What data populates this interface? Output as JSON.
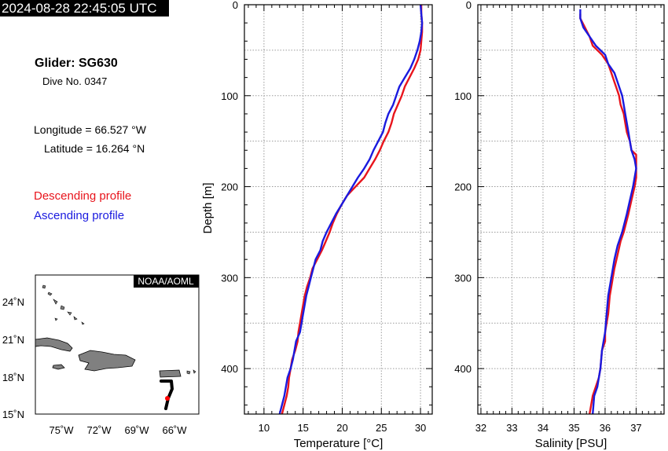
{
  "header": {
    "timestamp": "2024-08-28 22:45:05 UTC",
    "glider": "Glider: SG630",
    "dive": "Dive No. 0347",
    "longitude": "Longitude = 66.527 °W",
    "latitude": "Latitude = 16.264 °N"
  },
  "legend": {
    "descending": "Descending profile",
    "ascending": "Ascending profile",
    "descending_color": "#e8141c",
    "ascending_color": "#1a1adf"
  },
  "map": {
    "credit": "NOAA/AOML",
    "lat_labels": [
      "24˚N",
      "21˚N",
      "18˚N",
      "15˚N"
    ],
    "lon_labels": [
      "75˚W",
      "72˚W",
      "69˚W",
      "66˚W"
    ],
    "glider_position": {
      "lon": -66.527,
      "lat": 16.264
    },
    "track_color": "#000000",
    "position_color": "#ff0000",
    "land_color": "#808080"
  },
  "chart_data": [
    {
      "type": "line",
      "xlabel": "Temperature [°C]",
      "ylabel": "Depth [m]",
      "xlim": [
        7.5,
        31.5
      ],
      "ylim": [
        450,
        0
      ],
      "xticks": [
        10,
        15,
        20,
        25,
        30
      ],
      "yticks": [
        0,
        100,
        200,
        300,
        400
      ],
      "grid": true,
      "series": [
        {
          "name": "Descending profile",
          "color": "#e8141c",
          "points": [
            [
              30.1,
              0
            ],
            [
              30.1,
              10
            ],
            [
              30.2,
              20
            ],
            [
              30.2,
              30
            ],
            [
              30.1,
              40
            ],
            [
              30.0,
              50
            ],
            [
              29.7,
              60
            ],
            [
              29.2,
              70
            ],
            [
              28.6,
              80
            ],
            [
              28.0,
              90
            ],
            [
              27.6,
              100
            ],
            [
              27.1,
              110
            ],
            [
              26.6,
              120
            ],
            [
              26.3,
              130
            ],
            [
              25.9,
              140
            ],
            [
              25.3,
              150
            ],
            [
              24.8,
              160
            ],
            [
              24.2,
              170
            ],
            [
              23.5,
              180
            ],
            [
              22.8,
              190
            ],
            [
              21.7,
              200
            ],
            [
              20.6,
              210
            ],
            [
              19.9,
              220
            ],
            [
              19.3,
              230
            ],
            [
              18.8,
              240
            ],
            [
              18.4,
              250
            ],
            [
              17.9,
              260
            ],
            [
              17.4,
              270
            ],
            [
              16.8,
              280
            ],
            [
              16.2,
              290
            ],
            [
              15.9,
              300
            ],
            [
              15.5,
              310
            ],
            [
              15.2,
              320
            ],
            [
              15.0,
              330
            ],
            [
              14.8,
              340
            ],
            [
              14.6,
              350
            ],
            [
              14.4,
              360
            ],
            [
              14.3,
              370
            ],
            [
              14.0,
              380
            ],
            [
              13.6,
              390
            ],
            [
              13.4,
              400
            ],
            [
              13.2,
              410
            ],
            [
              13.1,
              420
            ],
            [
              12.9,
              430
            ],
            [
              12.6,
              440
            ],
            [
              12.3,
              450
            ]
          ]
        },
        {
          "name": "Ascending profile",
          "color": "#1a1adf",
          "points": [
            [
              30.0,
              0
            ],
            [
              30.1,
              10
            ],
            [
              30.2,
              20
            ],
            [
              30.1,
              30
            ],
            [
              29.9,
              40
            ],
            [
              29.6,
              50
            ],
            [
              29.2,
              60
            ],
            [
              28.7,
              70
            ],
            [
              28.0,
              80
            ],
            [
              27.3,
              90
            ],
            [
              26.9,
              100
            ],
            [
              26.5,
              110
            ],
            [
              25.9,
              120
            ],
            [
              25.5,
              130
            ],
            [
              25.2,
              140
            ],
            [
              24.6,
              150
            ],
            [
              24.0,
              160
            ],
            [
              23.5,
              170
            ],
            [
              22.8,
              180
            ],
            [
              22.0,
              190
            ],
            [
              21.3,
              200
            ],
            [
              20.6,
              210
            ],
            [
              19.9,
              220
            ],
            [
              19.2,
              230
            ],
            [
              18.6,
              240
            ],
            [
              18.0,
              250
            ],
            [
              17.5,
              260
            ],
            [
              17.2,
              270
            ],
            [
              16.6,
              280
            ],
            [
              16.3,
              290
            ],
            [
              16.0,
              300
            ],
            [
              15.7,
              310
            ],
            [
              15.4,
              320
            ],
            [
              15.2,
              330
            ],
            [
              15.0,
              340
            ],
            [
              14.8,
              350
            ],
            [
              14.6,
              360
            ],
            [
              14.1,
              370
            ],
            [
              13.9,
              380
            ],
            [
              13.7,
              390
            ],
            [
              13.4,
              400
            ],
            [
              13.0,
              410
            ],
            [
              12.8,
              420
            ],
            [
              12.6,
              430
            ],
            [
              12.3,
              440
            ],
            [
              12.0,
              450
            ]
          ]
        }
      ]
    },
    {
      "type": "line",
      "xlabel": "Salinity [PSU]",
      "ylabel": "",
      "xlim": [
        31.9,
        37.9
      ],
      "ylim": [
        450,
        0
      ],
      "xticks": [
        32,
        33,
        34,
        35,
        36,
        37
      ],
      "yticks": [
        0,
        100,
        200,
        300,
        400
      ],
      "grid": true,
      "series": [
        {
          "name": "Descending profile",
          "color": "#e8141c",
          "points": [
            [
              35.2,
              10
            ],
            [
              35.2,
              15
            ],
            [
              35.35,
              25
            ],
            [
              35.5,
              35
            ],
            [
              35.6,
              45
            ],
            [
              35.9,
              55
            ],
            [
              36.1,
              65
            ],
            [
              36.2,
              75
            ],
            [
              36.3,
              85
            ],
            [
              36.4,
              95
            ],
            [
              36.45,
              100
            ],
            [
              36.5,
              110
            ],
            [
              36.6,
              120
            ],
            [
              36.65,
              130
            ],
            [
              36.7,
              140
            ],
            [
              36.8,
              150
            ],
            [
              36.85,
              160
            ],
            [
              37.0,
              165
            ],
            [
              37.0,
              175
            ],
            [
              37.0,
              190
            ],
            [
              36.95,
              200
            ],
            [
              36.85,
              215
            ],
            [
              36.75,
              230
            ],
            [
              36.6,
              250
            ],
            [
              36.5,
              260
            ],
            [
              36.4,
              275
            ],
            [
              36.3,
              290
            ],
            [
              36.25,
              300
            ],
            [
              36.2,
              310
            ],
            [
              36.15,
              320
            ],
            [
              36.1,
              340
            ],
            [
              36.05,
              350
            ],
            [
              36.0,
              360
            ],
            [
              36.0,
              370
            ],
            [
              35.9,
              380
            ],
            [
              35.85,
              400
            ],
            [
              35.8,
              410
            ],
            [
              35.7,
              420
            ],
            [
              35.6,
              430
            ],
            [
              35.5,
              450
            ]
          ]
        },
        {
          "name": "Ascending profile",
          "color": "#1a1adf",
          "points": [
            [
              35.2,
              5
            ],
            [
              35.2,
              15
            ],
            [
              35.3,
              25
            ],
            [
              35.5,
              35
            ],
            [
              35.7,
              45
            ],
            [
              36.0,
              55
            ],
            [
              36.1,
              65
            ],
            [
              36.3,
              75
            ],
            [
              36.4,
              85
            ],
            [
              36.5,
              95
            ],
            [
              36.55,
              100
            ],
            [
              36.6,
              110
            ],
            [
              36.65,
              120
            ],
            [
              36.7,
              130
            ],
            [
              36.75,
              140
            ],
            [
              36.8,
              150
            ],
            [
              36.85,
              160
            ],
            [
              36.95,
              170
            ],
            [
              37.0,
              180
            ],
            [
              36.95,
              190
            ],
            [
              36.9,
              200
            ],
            [
              36.8,
              215
            ],
            [
              36.7,
              230
            ],
            [
              36.55,
              250
            ],
            [
              36.4,
              265
            ],
            [
              36.3,
              280
            ],
            [
              36.2,
              300
            ],
            [
              36.15,
              310
            ],
            [
              36.1,
              320
            ],
            [
              36.05,
              340
            ],
            [
              36.0,
              360
            ],
            [
              35.95,
              370
            ],
            [
              35.9,
              380
            ],
            [
              35.85,
              400
            ],
            [
              35.8,
              410
            ],
            [
              35.75,
              420
            ],
            [
              35.65,
              430
            ],
            [
              35.6,
              450
            ]
          ]
        }
      ]
    }
  ]
}
